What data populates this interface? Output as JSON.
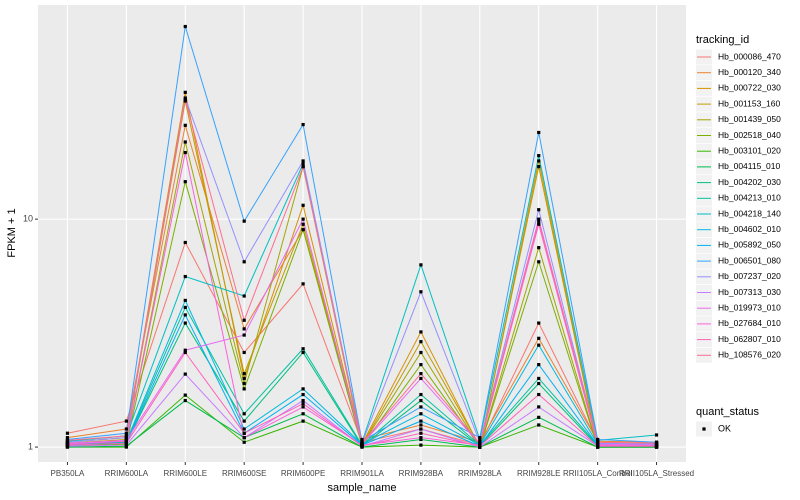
{
  "chart_data": {
    "type": "line",
    "log_scale": true,
    "grid": true,
    "x_label": "sample_name",
    "y_label": "FPKM + 1",
    "legend_title": "tracking_id",
    "legend_position": "right",
    "point_legend_title": "quant_status",
    "point_legend_label": "OK",
    "point_color": "#000000",
    "ylim": [
      0.86,
      87
    ],
    "yticks": [
      1,
      10
    ],
    "categories": [
      "PB350LA",
      "RRIM600LA",
      "RRIM600LE",
      "RRIM600SE",
      "RRIM600PE",
      "RRIM901LA",
      "RRIM928BA",
      "RRIM928LA",
      "RRIM928LE",
      "RRII105LA_Control",
      "RRII105LA_Stressed"
    ],
    "series": [
      {
        "name": "Hb_000086_470",
        "color": "#F8766D",
        "values": [
          1.15,
          1.3,
          7.9,
          2.6,
          5.2,
          1.05,
          1.2,
          1.02,
          3.5,
          1.05,
          1.04
        ]
      },
      {
        "name": "Hb_000120_340",
        "color": "#EA8331",
        "values": [
          1.1,
          1.2,
          25.8,
          3.3,
          9,
          1.08,
          1.25,
          1.05,
          3.0,
          1.06,
          1.05
        ]
      },
      {
        "name": "Hb_000722_030",
        "color": "#D89000",
        "values": [
          1.05,
          1.1,
          36,
          2.0,
          11.5,
          1.03,
          3.2,
          1.0,
          18,
          1.02,
          1.02
        ]
      },
      {
        "name": "Hb_001153_160",
        "color": "#C09B00",
        "values": [
          1.04,
          1.08,
          33,
          2.1,
          9.5,
          1.02,
          2.9,
          1.01,
          17,
          1.01,
          1.01
        ]
      },
      {
        "name": "Hb_001439_050",
        "color": "#A3A500",
        "values": [
          1.02,
          1.05,
          21.8,
          1.9,
          17,
          1.02,
          2.6,
          1.0,
          7.5,
          1.0,
          1.0
        ]
      },
      {
        "name": "Hb_002518_040",
        "color": "#7CAE00",
        "values": [
          1.01,
          1.03,
          14.6,
          1.8,
          9,
          1.01,
          2.3,
          1.0,
          6.5,
          1.0,
          1.0
        ]
      },
      {
        "name": "Hb_003101_020",
        "color": "#39B600",
        "values": [
          1.0,
          1.0,
          1.69,
          1.05,
          1.3,
          1.0,
          1.02,
          1.0,
          1.25,
          1.0,
          1.0
        ]
      },
      {
        "name": "Hb_004115_010",
        "color": "#00BB4E",
        "values": [
          1.0,
          1.01,
          1.6,
          1.1,
          1.4,
          1.0,
          1.08,
          1.0,
          1.35,
          1.0,
          1.0
        ]
      },
      {
        "name": "Hb_004202_030",
        "color": "#00BF7D",
        "values": [
          1.02,
          1.04,
          3.5,
          1.3,
          2.6,
          1.01,
          1.6,
          1.01,
          1.9,
          1.01,
          1.01
        ]
      },
      {
        "name": "Hb_004213_010",
        "color": "#00C1A3",
        "values": [
          1.03,
          1.05,
          4.1,
          1.4,
          2.7,
          1.02,
          1.7,
          1.02,
          2.0,
          1.02,
          1.02
        ]
      },
      {
        "name": "Hb_004218_140",
        "color": "#00BFC4",
        "values": [
          1.06,
          1.12,
          5.6,
          4.6,
          17.5,
          1.05,
          6.3,
          1.08,
          19,
          1.07,
          1.13
        ]
      },
      {
        "name": "Hb_004602_010",
        "color": "#00BAE0",
        "values": [
          1.03,
          1.06,
          4.4,
          1.2,
          1.8,
          1.03,
          1.4,
          1.02,
          2.8,
          1.03,
          1.03
        ]
      },
      {
        "name": "Hb_005892_050",
        "color": "#00B0F6",
        "values": [
          1.02,
          1.04,
          3.8,
          1.15,
          1.7,
          1.02,
          1.3,
          1.01,
          2.3,
          1.02,
          1.02
        ]
      },
      {
        "name": "Hb_006501_080",
        "color": "#35A2FF",
        "values": [
          1.08,
          1.15,
          70,
          9.8,
          26,
          1.06,
          1.5,
          1.1,
          24,
          1.08,
          1.05
        ]
      },
      {
        "name": "Hb_007237_020",
        "color": "#9590FF",
        "values": [
          1.05,
          1.1,
          34,
          6.5,
          18,
          1.04,
          4.8,
          1.05,
          11,
          1.04,
          1.03
        ]
      },
      {
        "name": "Hb_007313_030",
        "color": "#C77CFF",
        "values": [
          1.01,
          1.02,
          2.09,
          1.1,
          1.6,
          1.01,
          1.2,
          1.0,
          1.5,
          1.01,
          1.01
        ]
      },
      {
        "name": "Hb_019973_010",
        "color": "#E76BF3",
        "values": [
          1.04,
          1.07,
          2.66,
          3.1,
          10,
          1.03,
          2.0,
          1.03,
          10,
          1.03,
          1.02
        ]
      },
      {
        "name": "Hb_027684_010",
        "color": "#FA62DB",
        "values": [
          1.03,
          1.06,
          19.6,
          1.1,
          1.5,
          1.02,
          1.1,
          1.02,
          9.5,
          1.02,
          1.02
        ]
      },
      {
        "name": "Hb_062807_010",
        "color": "#FF62BC",
        "values": [
          1.02,
          1.04,
          2.6,
          1.15,
          1.55,
          1.01,
          1.15,
          1.01,
          1.7,
          1.01,
          1.01
        ]
      },
      {
        "name": "Hb_108576_020",
        "color": "#FF6C91",
        "values": [
          1.07,
          1.12,
          33.5,
          3.6,
          17,
          1.04,
          2.1,
          1.04,
          9.8,
          1.05,
          1.04
        ]
      }
    ]
  }
}
